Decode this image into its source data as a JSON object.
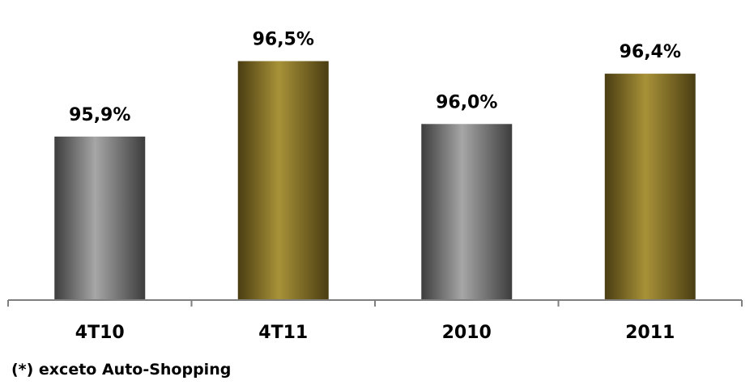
{
  "chart_data": {
    "type": "bar",
    "categories": [
      "4T10",
      "4T11",
      "2010",
      "2011"
    ],
    "values": [
      95.9,
      96.5,
      96.0,
      96.4
    ],
    "value_labels": [
      "95,9%",
      "96,5%",
      "96,0%",
      "96,4%"
    ],
    "bar_styles": [
      "gray",
      "gold",
      "gray",
      "gold"
    ],
    "title": "",
    "xlabel": "",
    "ylabel": "",
    "ylim": [
      94.6,
      96.6
    ],
    "grid": false,
    "legend": "none"
  },
  "colors": {
    "gray_edge": "#3d3d3d",
    "gray_mid": "#a6a6a6",
    "gold_edge": "#4a3d12",
    "gold_mid": "#a89238",
    "axis": "#7f7f7f",
    "text": "#000000"
  },
  "footnote": "(*) exceto  Auto-Shopping"
}
